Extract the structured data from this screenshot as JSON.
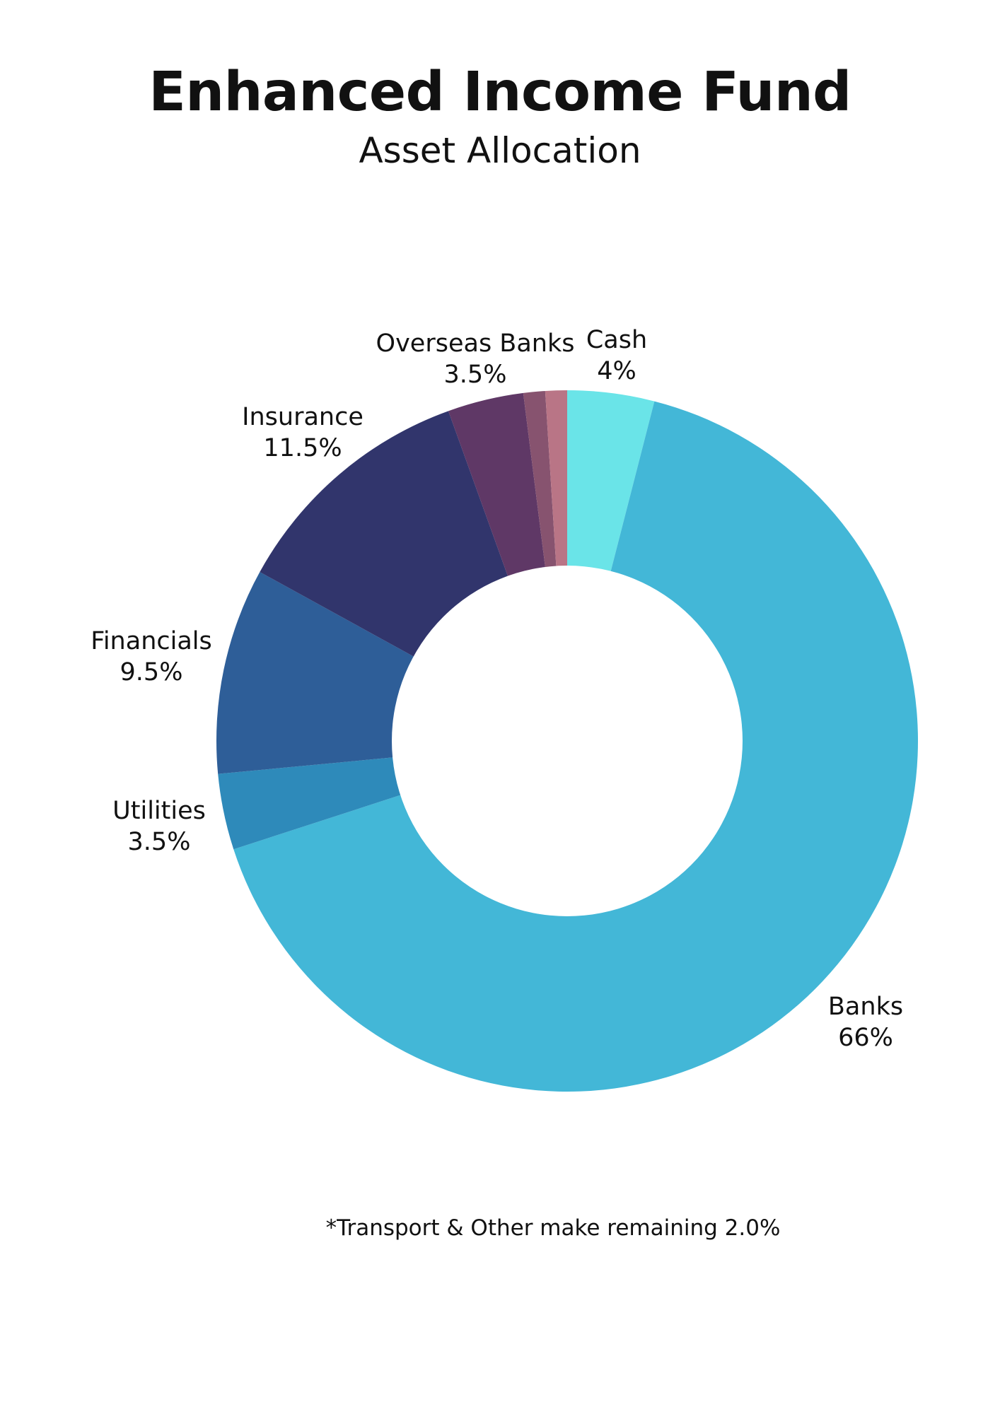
{
  "title": "Enhanced Income Fund",
  "subtitle": "Asset Allocation",
  "footnote": "*Transport & Other make remaining 2.0%",
  "chart_data": {
    "type": "pie",
    "donut": true,
    "title": "Enhanced Income Fund",
    "subtitle": "Asset Allocation",
    "slices": [
      {
        "name": "Cash",
        "value": 4,
        "value_label": "4%",
        "color": "#6ae4e8",
        "labeled": true
      },
      {
        "name": "Banks",
        "value": 66,
        "value_label": "66%",
        "color": "#43b7d7",
        "labeled": true
      },
      {
        "name": "Utilities",
        "value": 3.5,
        "value_label": "3.5%",
        "color": "#2e8aba",
        "labeled": true
      },
      {
        "name": "Financials",
        "value": 9.5,
        "value_label": "9.5%",
        "color": "#2e5e98",
        "labeled": true
      },
      {
        "name": "Insurance",
        "value": 11.5,
        "value_label": "11.5%",
        "color": "#31356c",
        "labeled": true
      },
      {
        "name": "Overseas Banks",
        "value": 3.5,
        "value_label": "3.5%",
        "color": "#5f3866",
        "labeled": true
      },
      {
        "name": "",
        "value": 1,
        "value_label": "",
        "color": "#87536f",
        "labeled": false
      },
      {
        "name": "",
        "value": 1,
        "value_label": "",
        "color": "#b97586",
        "labeled": false
      }
    ]
  }
}
